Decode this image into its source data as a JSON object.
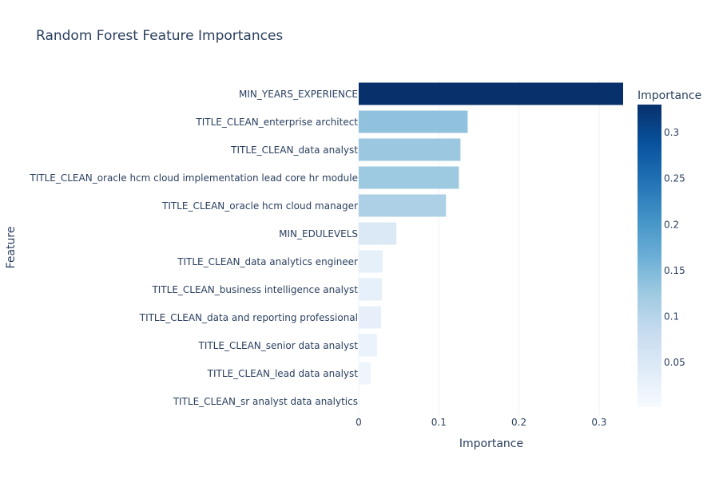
{
  "chart_data": {
    "type": "bar",
    "orientation": "horizontal",
    "title": "Random Forest Feature Importances",
    "xlabel": "Importance",
    "ylabel": "Feature",
    "xlim": [
      0,
      0.33
    ],
    "xticks": [
      0,
      0.1,
      0.2,
      0.3
    ],
    "x_tick_labels": [
      "0",
      "0.1",
      "0.2",
      "0.3"
    ],
    "grid": true,
    "categories": [
      "MIN_YEARS_EXPERIENCE",
      "TITLE_CLEAN_enterprise architect",
      "TITLE_CLEAN_data analyst",
      "TITLE_CLEAN_oracle hcm cloud implementation lead core hr module",
      "TITLE_CLEAN_oracle hcm cloud manager",
      "MIN_EDULEVELS",
      "TITLE_CLEAN_data analytics engineer",
      "TITLE_CLEAN_business intelligence analyst",
      "TITLE_CLEAN_data and reporting professional",
      "TITLE_CLEAN_senior data analyst",
      "TITLE_CLEAN_lead data analyst",
      "TITLE_CLEAN_sr analyst data analytics"
    ],
    "values": [
      0.33,
      0.136,
      0.127,
      0.125,
      0.109,
      0.047,
      0.03,
      0.029,
      0.028,
      0.023,
      0.015,
      0.001
    ],
    "colorbar": {
      "title": "Importance",
      "colorscale": "Blues",
      "range": [
        0.001,
        0.33
      ],
      "ticks": [
        0.05,
        0.1,
        0.15,
        0.2,
        0.25,
        0.3
      ],
      "tick_labels": [
        "0.05",
        "0.1",
        "0.15",
        "0.2",
        "0.25",
        "0.3"
      ]
    }
  }
}
